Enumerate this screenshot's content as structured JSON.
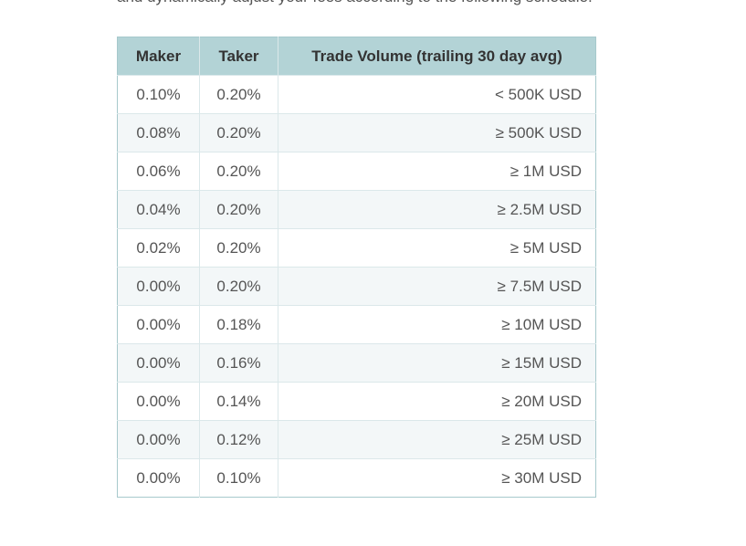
{
  "intro": {
    "text": "and dynamically adjust your fees according to the following schedule."
  },
  "fee_table": {
    "headers": {
      "maker": "Maker",
      "taker": "Taker",
      "volume": "Trade Volume (trailing 30 day avg)"
    },
    "rows": [
      {
        "maker": "0.10%",
        "taker": "0.20%",
        "volume": "< 500K USD"
      },
      {
        "maker": "0.08%",
        "taker": "0.20%",
        "volume": "≥ 500K USD"
      },
      {
        "maker": "0.06%",
        "taker": "0.20%",
        "volume": "≥ 1M USD"
      },
      {
        "maker": "0.04%",
        "taker": "0.20%",
        "volume": "≥ 2.5M USD"
      },
      {
        "maker": "0.02%",
        "taker": "0.20%",
        "volume": "≥ 5M USD"
      },
      {
        "maker": "0.00%",
        "taker": "0.20%",
        "volume": "≥ 7.5M USD"
      },
      {
        "maker": "0.00%",
        "taker": "0.18%",
        "volume": "≥ 10M USD"
      },
      {
        "maker": "0.00%",
        "taker": "0.16%",
        "volume": "≥ 15M USD"
      },
      {
        "maker": "0.00%",
        "taker": "0.14%",
        "volume": "≥ 20M USD"
      },
      {
        "maker": "0.00%",
        "taker": "0.12%",
        "volume": "≥ 25M USD"
      },
      {
        "maker": "0.00%",
        "taker": "0.10%",
        "volume": "≥ 30M USD"
      }
    ]
  },
  "colors": {
    "header_background": "#b3d3d6",
    "table_border": "#a7c9cc",
    "row_alt_background": "#f3f7f8"
  }
}
